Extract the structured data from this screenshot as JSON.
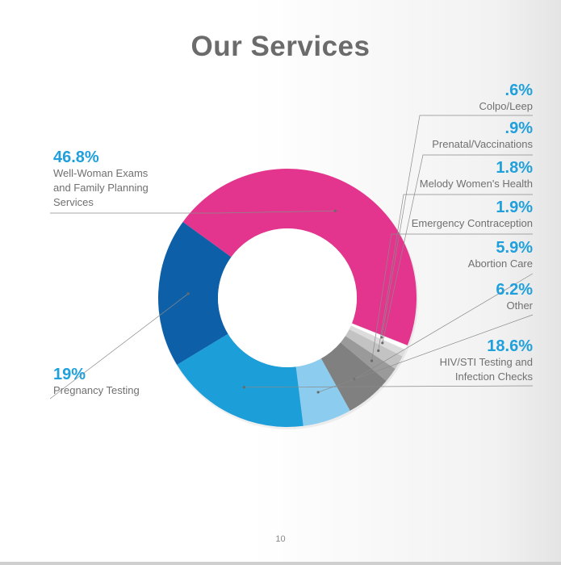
{
  "title": "Our Services",
  "page_number": "10",
  "chart_data": {
    "type": "pie",
    "donut": true,
    "slices": [
      {
        "label": "Well-Woman Exams\nand Family Planning\nServices",
        "pct_label": "46.8%",
        "value": 46.8,
        "color": "#e3358e"
      },
      {
        "label": "Colpo/Leep",
        "pct_label": ".6%",
        "value": 0.6,
        "color": "#ffffff"
      },
      {
        "label": "Prenatal/Vaccinations",
        "pct_label": ".9%",
        "value": 0.9,
        "color": "#dcdcdc"
      },
      {
        "label": "Melody Women's Health",
        "pct_label": "1.8%",
        "value": 1.8,
        "color": "#c3c3c3"
      },
      {
        "label": "Emergency Contraception",
        "pct_label": "1.9%",
        "value": 1.9,
        "color": "#9a9a9a"
      },
      {
        "label": "Abortion Care",
        "pct_label": "5.9%",
        "value": 5.9,
        "color": "#808080"
      },
      {
        "label": "Other",
        "pct_label": "6.2%",
        "value": 6.2,
        "color": "#8ccdef"
      },
      {
        "label": "HIV/STI Testing and\nInfection Checks",
        "pct_label": "18.6%",
        "value": 18.6,
        "color": "#1c9ed9"
      },
      {
        "label": "Pregnancy Testing",
        "pct_label": "19%",
        "value": 19.0,
        "color": "#0d5fa8"
      }
    ]
  }
}
